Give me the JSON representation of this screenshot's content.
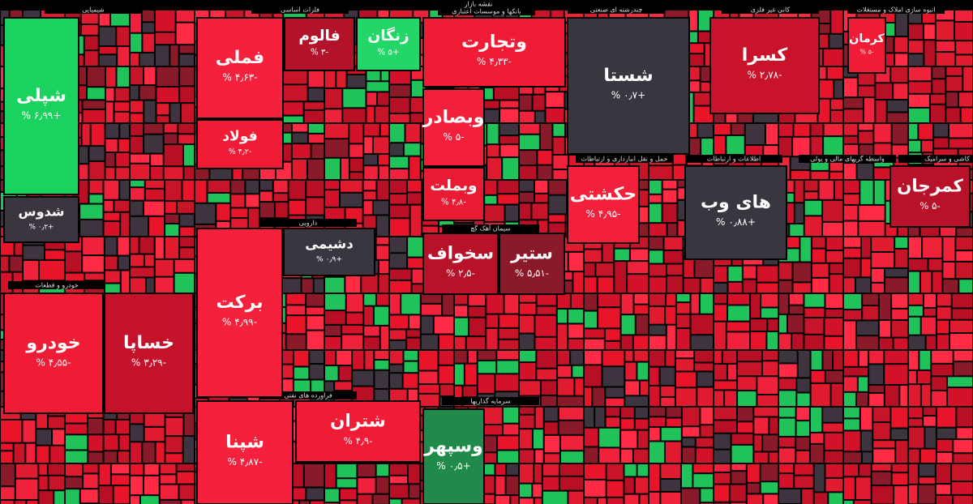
{
  "header": {
    "title": "نقشه بازار"
  },
  "sectors": [
    {
      "label": "شیمیایی"
    },
    {
      "label": "فلزات اساسی"
    },
    {
      "label": "بانکها و موسسات اعتباری"
    },
    {
      "label": "چندرشته ای صنعتی"
    },
    {
      "label": "کانی غیر فلزی"
    },
    {
      "label": "انبوه سازی املاک و مستغلات"
    },
    {
      "label": "خودرو و قطعات"
    },
    {
      "label": "دارویی"
    },
    {
      "label": "سیمان آهک گچ"
    },
    {
      "label": "فراورده های نفتی"
    },
    {
      "label": "سرمایه گذاریها"
    },
    {
      "label": "حمل و نقل انبارداری و ارتباطات"
    },
    {
      "label": "اطلاعات و ارتباطات"
    },
    {
      "label": "واسطه گریهای مالی و پولی"
    },
    {
      "label": "کاشی و سرامیک"
    }
  ],
  "tiles": [
    {
      "symbol": "شپلی",
      "change": "+۶٫۹۹ %"
    },
    {
      "symbol": "شدوس",
      "change": "+۰٫۲ %"
    },
    {
      "symbol": "فملی",
      "change": "-۴٫۶۳ %"
    },
    {
      "symbol": "فالوم",
      "change": "-۳ %"
    },
    {
      "symbol": "زنگان",
      "change": "+۵ %"
    },
    {
      "symbol": "فولاد",
      "change": "-۴٫۲ %"
    },
    {
      "symbol": "وتجارت",
      "change": "-۴٫۳۳ %"
    },
    {
      "symbol": "وبصادر",
      "change": "-۵ %"
    },
    {
      "symbol": "وبملت",
      "change": "-۴٫۸ %"
    },
    {
      "symbol": "شستا",
      "change": "+۰٫۷ %"
    },
    {
      "symbol": "کسرا",
      "change": "-۲٫۷۸ %"
    },
    {
      "symbol": "کرمان",
      "change": "-۵ %"
    },
    {
      "symbol": "حکشتی",
      "change": "-۴٫۹۵ %"
    },
    {
      "symbol": "های وب",
      "change": "+۰٫۸۸ %"
    },
    {
      "symbol": "کمرجان",
      "change": "-۵ %"
    },
    {
      "symbol": "خودرو",
      "change": "-۴٫۵۵ %"
    },
    {
      "symbol": "خساپا",
      "change": "-۳٫۲۹ %"
    },
    {
      "symbol": "برکت",
      "change": "-۴٫۹۹ %"
    },
    {
      "symbol": "دشیمی",
      "change": "+۰٫۹ %"
    },
    {
      "symbol": "سخواف",
      "change": "-۲٫۵ %"
    },
    {
      "symbol": "ستیر",
      "change": "-۵٫۵۱ %"
    },
    {
      "symbol": "شپنا",
      "change": "-۴٫۸۷ %"
    },
    {
      "symbol": "شتران",
      "change": "-۴٫۹ %"
    },
    {
      "symbol": "وسپهر",
      "change": "+۰٫۵ %"
    }
  ]
}
